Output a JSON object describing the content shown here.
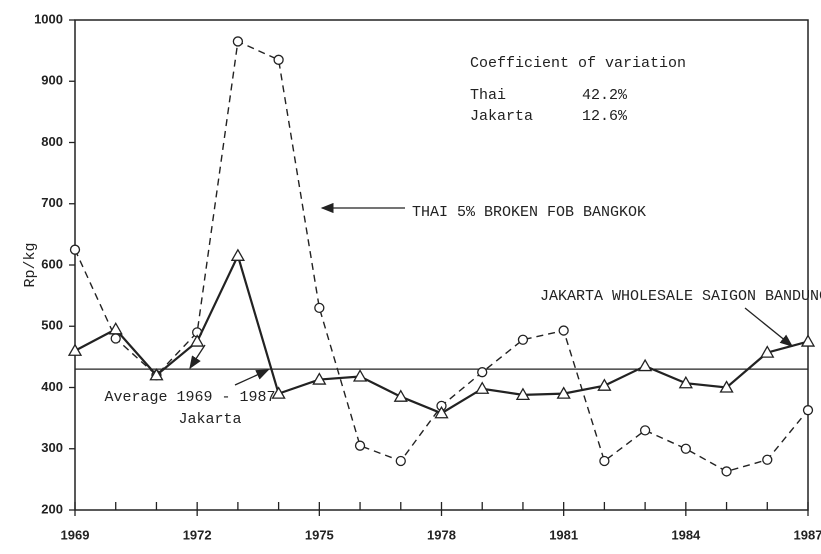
{
  "chart_data": {
    "type": "line",
    "y_label": "Rp/kg",
    "x": [
      1969,
      1970,
      1971,
      1972,
      1973,
      1974,
      1975,
      1976,
      1977,
      1978,
      1979,
      1980,
      1981,
      1982,
      1983,
      1984,
      1985,
      1986,
      1987
    ],
    "xlim": [
      1969,
      1987
    ],
    "xticks": [
      1969,
      1972,
      1975,
      1978,
      1981,
      1984,
      1987
    ],
    "ylim": [
      200,
      1000
    ],
    "yticks": [
      200,
      300,
      400,
      500,
      600,
      700,
      800,
      900,
      1000
    ],
    "series": [
      {
        "name": "THAI 5% BROKEN FOB BANGKOK",
        "color": "#222222",
        "dashed": true,
        "marker": "circle",
        "values": [
          625,
          480,
          420,
          490,
          965,
          935,
          530,
          305,
          280,
          370,
          425,
          478,
          493,
          280,
          330,
          300,
          263,
          282,
          363
        ]
      },
      {
        "name": "JAKARTA WHOLESALE SAIGON BANDUNG I",
        "color": "#222222",
        "dashed": false,
        "marker": "triangle",
        "values": [
          460,
          495,
          420,
          475,
          615,
          390,
          413,
          418,
          385,
          358,
          398,
          388,
          390,
          403,
          435,
          407,
          400,
          457,
          475
        ]
      }
    ],
    "reference_line": {
      "value": 430,
      "label": [
        "Average 1969 - 1987",
        "Jakarta"
      ]
    },
    "annotation": {
      "title": "Coefficient of variation",
      "rows": [
        [
          "Thai",
          "42.2%"
        ],
        [
          "Jakarta",
          "12.6%"
        ]
      ]
    }
  }
}
